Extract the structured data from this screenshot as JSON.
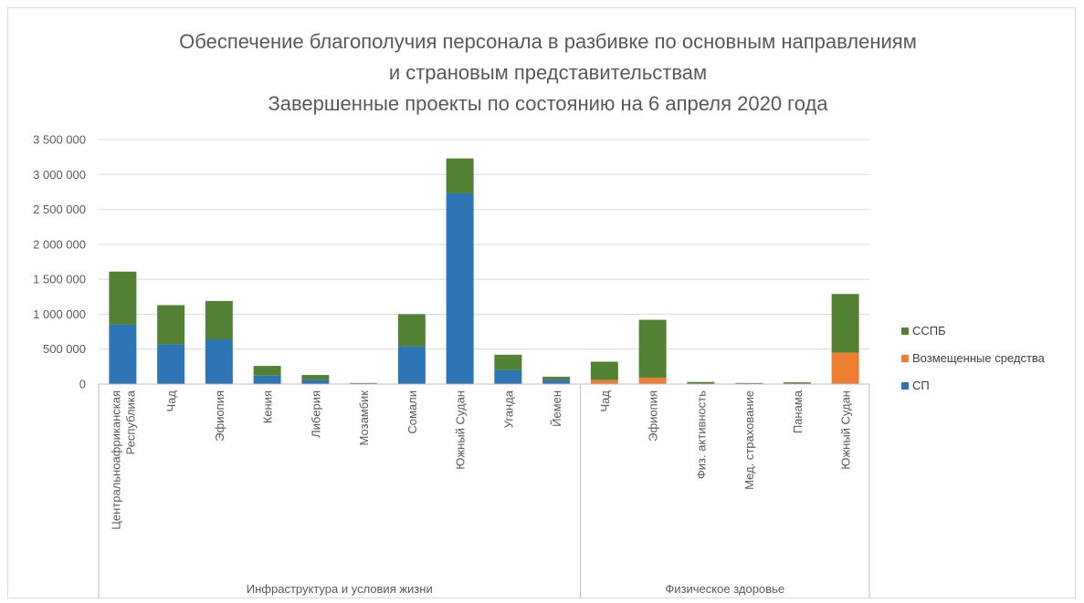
{
  "chart_data": {
    "type": "bar",
    "stacked": true,
    "title_lines": [
      "Обеспечение благополучия персонала в разбивке по основным направлениям",
      "и страновым представительствам",
      "Завершенные проекты по состоянию на 6 апреля 2020 года"
    ],
    "ylim": [
      0,
      3500000
    ],
    "y_ticks": [
      "0",
      "500 000",
      "1 000 000",
      "1 500 000",
      "2 000 000",
      "2 500 000",
      "3 000 000",
      "3 500 000"
    ],
    "y_tick_values": [
      0,
      500000,
      1000000,
      1500000,
      2000000,
      2500000,
      3000000,
      3500000
    ],
    "grid": true,
    "legend_position": "right",
    "groups": [
      {
        "label": "Инфраструктура и условия жизни",
        "count": 10
      },
      {
        "label": "Физическое здоровье",
        "count": 6
      }
    ],
    "categories": [
      [
        "Центральноафриканская",
        "Республика"
      ],
      [
        "Чад"
      ],
      [
        "Эфиопия"
      ],
      [
        "Кения"
      ],
      [
        "Либерия"
      ],
      [
        "Мозамбик"
      ],
      [
        "Сомали"
      ],
      [
        "Южный Судан"
      ],
      [
        "Уганда"
      ],
      [
        "Йемен"
      ],
      [
        "Чад"
      ],
      [
        "Эфиопия"
      ],
      [
        "Физ. активность"
      ],
      [
        "Мед. страхование"
      ],
      [
        "Панама"
      ],
      [
        "Южный Судан"
      ]
    ],
    "series": [
      {
        "name": "СП",
        "color": "#2e75b6",
        "values": [
          850000,
          570000,
          640000,
          120000,
          60000,
          0,
          540000,
          2730000,
          200000,
          60000,
          0,
          0,
          0,
          0,
          0,
          0
        ]
      },
      {
        "name": "Возмещенные средства",
        "color": "#ed7d31",
        "values": [
          0,
          0,
          0,
          0,
          0,
          0,
          0,
          0,
          0,
          0,
          60000,
          90000,
          0,
          0,
          0,
          450000
        ]
      },
      {
        "name": "ССПБ",
        "color": "#548235",
        "values": [
          760000,
          560000,
          550000,
          140000,
          70000,
          15000,
          460000,
          500000,
          220000,
          45000,
          260000,
          830000,
          30000,
          15000,
          25000,
          840000
        ]
      }
    ],
    "legend_order": [
      "ССПБ",
      "Возмещенные средства",
      "СП"
    ]
  }
}
